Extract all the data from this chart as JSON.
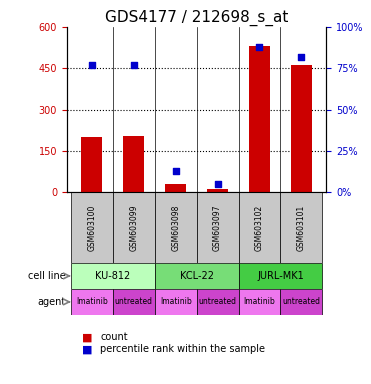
{
  "title": "GDS4177 / 212698_s_at",
  "samples": [
    "GSM603100",
    "GSM603099",
    "GSM603098",
    "GSM603097",
    "GSM603102",
    "GSM603101"
  ],
  "counts": [
    200,
    205,
    30,
    10,
    530,
    460
  ],
  "percentile_ranks": [
    77,
    77,
    13,
    5,
    88,
    82
  ],
  "ylim_left": [
    0,
    600
  ],
  "ylim_right": [
    0,
    100
  ],
  "yticks_left": [
    0,
    150,
    300,
    450,
    600
  ],
  "yticks_right": [
    0,
    25,
    50,
    75,
    100
  ],
  "bar_color": "#cc0000",
  "dot_color": "#0000cc",
  "cell_lines": [
    {
      "label": "KU-812",
      "start": 0,
      "end": 2,
      "color": "#ccffcc"
    },
    {
      "label": "KCL-22",
      "start": 2,
      "end": 4,
      "color": "#66cc66"
    },
    {
      "label": "JURL-MK1",
      "start": 4,
      "end": 6,
      "color": "#33cc33"
    }
  ],
  "agents": [
    {
      "label": "Imatinib",
      "idx": 0,
      "color": "#ee66ee"
    },
    {
      "label": "untreated",
      "idx": 1,
      "color": "#dd44dd"
    },
    {
      "label": "Imatinib",
      "idx": 2,
      "color": "#ee66ee"
    },
    {
      "label": "untreated",
      "idx": 3,
      "color": "#dd44dd"
    },
    {
      "label": "Imatinib",
      "idx": 4,
      "color": "#ee66ee"
    },
    {
      "label": "untreated",
      "idx": 5,
      "color": "#dd44dd"
    }
  ],
  "arrow_color": "#888888",
  "grid_color": "#000000",
  "dotted_line_color": "#000000",
  "bar_width": 0.5,
  "tick_label_fontsize": 7,
  "axis_label_fontsize": 8,
  "title_fontsize": 11
}
